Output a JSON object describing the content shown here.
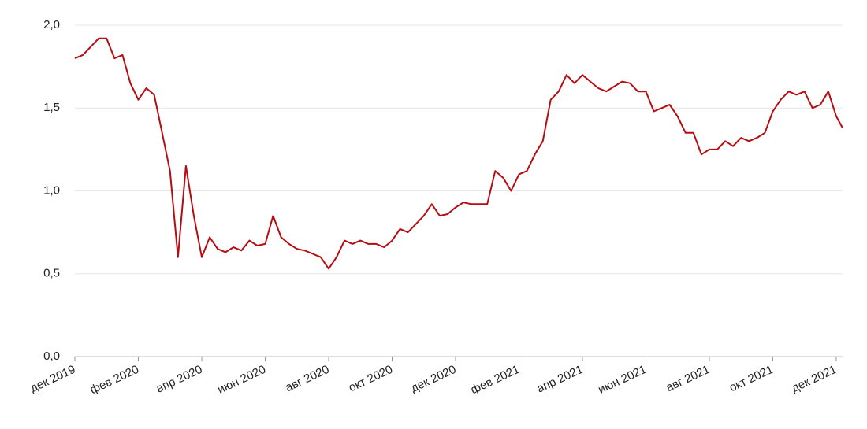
{
  "chart_data": {
    "type": "line",
    "x": [
      0,
      0.25,
      0.5,
      0.75,
      1,
      1.25,
      1.5,
      1.75,
      2,
      2.25,
      2.5,
      2.75,
      3,
      3.25,
      3.5,
      3.75,
      4,
      4.25,
      4.5,
      4.75,
      5,
      5.25,
      5.5,
      5.75,
      6,
      6.25,
      6.5,
      6.75,
      7,
      7.25,
      7.5,
      7.75,
      8,
      8.25,
      8.5,
      8.75,
      9,
      9.25,
      9.5,
      9.75,
      10,
      10.25,
      10.5,
      10.75,
      11,
      11.25,
      11.5,
      11.75,
      12,
      12.25,
      12.5,
      12.75,
      13,
      13.25,
      13.5,
      13.75,
      14,
      14.25,
      14.5,
      14.75,
      15,
      15.25,
      15.5,
      15.75,
      16,
      16.25,
      16.5,
      16.75,
      17,
      17.25,
      17.5,
      17.75,
      18,
      18.25,
      18.5,
      18.75,
      19,
      19.25,
      19.5,
      19.75,
      20,
      20.25,
      20.5,
      20.75,
      21,
      21.25,
      21.5,
      21.75,
      22,
      22.25,
      22.5,
      22.75,
      23,
      23.25,
      23.5,
      23.75,
      24,
      24.2
    ],
    "series": [
      {
        "color": "#b50d12",
        "values": [
          1.8,
          1.82,
          1.87,
          1.92,
          1.92,
          1.8,
          1.82,
          1.65,
          1.55,
          1.62,
          1.58,
          1.35,
          1.12,
          0.6,
          1.15,
          0.85,
          0.6,
          0.72,
          0.65,
          0.63,
          0.66,
          0.64,
          0.7,
          0.67,
          0.68,
          0.85,
          0.72,
          0.68,
          0.65,
          0.64,
          0.62,
          0.6,
          0.53,
          0.6,
          0.7,
          0.68,
          0.7,
          0.68,
          0.68,
          0.66,
          0.7,
          0.77,
          0.75,
          0.8,
          0.85,
          0.92,
          0.85,
          0.86,
          0.9,
          0.93,
          0.92,
          0.92,
          0.92,
          1.12,
          1.08,
          1.0,
          1.1,
          1.12,
          1.22,
          1.3,
          1.55,
          1.6,
          1.7,
          1.65,
          1.7,
          1.66,
          1.62,
          1.6,
          1.63,
          1.66,
          1.65,
          1.6,
          1.6,
          1.48,
          1.5,
          1.52,
          1.45,
          1.35,
          1.35,
          1.22,
          1.25,
          1.25,
          1.3,
          1.27,
          1.32,
          1.3,
          1.32,
          1.35,
          1.48,
          1.55,
          1.6,
          1.58,
          1.6,
          1.5,
          1.52,
          1.6,
          1.45,
          1.38
        ]
      }
    ],
    "xlim": [
      0,
      24.2
    ],
    "xticks": [
      {
        "value": 0,
        "label": "дек 2019"
      },
      {
        "value": 2,
        "label": "фев 2020"
      },
      {
        "value": 4,
        "label": "апр 2020"
      },
      {
        "value": 6,
        "label": "июн 2020"
      },
      {
        "value": 8,
        "label": "авг 2020"
      },
      {
        "value": 10,
        "label": "окт 2020"
      },
      {
        "value": 12,
        "label": "дек 2020"
      },
      {
        "value": 14,
        "label": "фев 2021"
      },
      {
        "value": 16,
        "label": "апр 2021"
      },
      {
        "value": 18,
        "label": "июн 2021"
      },
      {
        "value": 20,
        "label": "авг 2021"
      },
      {
        "value": 22,
        "label": "окт 2021"
      },
      {
        "value": 24,
        "label": "дек 2021"
      }
    ],
    "ylim": [
      0,
      2
    ],
    "yticks": [
      {
        "value": 0,
        "label": "0,0"
      },
      {
        "value": 0.5,
        "label": "0,5"
      },
      {
        "value": 1,
        "label": "1,0"
      },
      {
        "value": 1.5,
        "label": "1,5"
      },
      {
        "value": 2,
        "label": "2,0"
      }
    ],
    "grid": true
  }
}
